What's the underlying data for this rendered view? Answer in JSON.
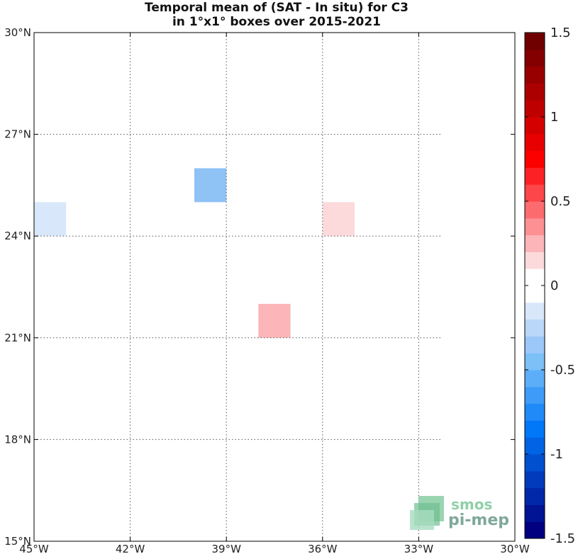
{
  "title": {
    "line1": "Temporal mean of (SAT - In situ) for C3",
    "line2": "in 1°x1° boxes over 2015-2021"
  },
  "map": {
    "lon_range": [
      -45,
      -30
    ],
    "lat_range": [
      15,
      30
    ],
    "lon_ticks": [
      {
        "value": -45,
        "label": "45°W"
      },
      {
        "value": -42,
        "label": "42°W"
      },
      {
        "value": -39,
        "label": "39°W"
      },
      {
        "value": -36,
        "label": "36°W"
      },
      {
        "value": -33,
        "label": "33°W"
      },
      {
        "value": -30,
        "label": "30°W"
      }
    ],
    "lat_ticks": [
      {
        "value": 15,
        "label": "15°N"
      },
      {
        "value": 18,
        "label": "18°N"
      },
      {
        "value": 21,
        "label": "21°N"
      },
      {
        "value": 24,
        "label": "24°N"
      },
      {
        "value": 27,
        "label": "27°N"
      },
      {
        "value": 30,
        "label": "30°N"
      }
    ],
    "boxes": [
      {
        "lon": -45,
        "lat": 24,
        "value": -0.15,
        "color": "#d8e8fa"
      },
      {
        "lon": -40,
        "lat": 25,
        "value": -0.35,
        "color": "#8fc2f5"
      },
      {
        "lon": -36,
        "lat": 24,
        "value": 0.15,
        "color": "#fcdadb"
      },
      {
        "lon": -38,
        "lat": 21,
        "value": 0.35,
        "color": "#fcb5b8"
      }
    ]
  },
  "colorbar": {
    "range": [
      -1.5,
      1.5
    ],
    "ticks": [
      {
        "value": 1.5,
        "label": "1.5"
      },
      {
        "value": 1,
        "label": "1"
      },
      {
        "value": 0.5,
        "label": "0.5"
      },
      {
        "value": 0,
        "label": "0"
      },
      {
        "value": -0.5,
        "label": "-0.5"
      },
      {
        "value": -1,
        "label": "-1"
      },
      {
        "value": -1.5,
        "label": "-1.5"
      }
    ],
    "colors_bottom_to_top": [
      "#000080",
      "#001494",
      "#0028a8",
      "#003cbc",
      "#0050d0",
      "#0064e4",
      "#0078f8",
      "#1f8af8",
      "#3e9cf8",
      "#5daef8",
      "#7cc0f8",
      "#9bc8f8",
      "#bad6f8",
      "#d8e8fa",
      "#ffffff",
      "#ffffff",
      "#fcdadb",
      "#fcb5b8",
      "#fc9093",
      "#fc6b6e",
      "#fc4649",
      "#fc2124",
      "#fc0000",
      "#e80000",
      "#d40000",
      "#c00000",
      "#ac0000",
      "#980000",
      "#840000",
      "#700000"
    ]
  },
  "logo": {
    "line1": "smos",
    "line2": "pi-mep",
    "colors": [
      "#8fcfa8",
      "#6fbf90",
      "#a8dcc0"
    ]
  }
}
